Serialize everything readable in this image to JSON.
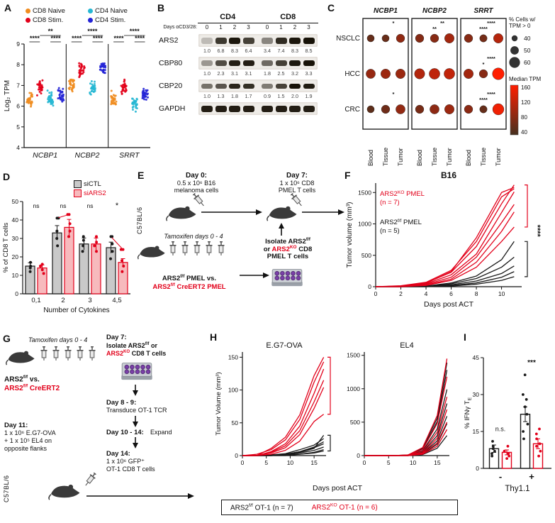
{
  "colors": {
    "red": "#e2001a",
    "black": "#1a1a1a"
  },
  "panels": {
    "A": {
      "label": "A",
      "legend": [
        {
          "label": "CD8 Naive",
          "color": "#f08c1e"
        },
        {
          "label": "CD8 Stim.",
          "color": "#e2001a"
        },
        {
          "label": "CD4 Naive",
          "color": "#25b7d3"
        },
        {
          "label": "CD4 Stim.",
          "color": "#2323d6"
        }
      ],
      "chart_data": {
        "type": "scatter",
        "ylabel": "Log₂ TPM",
        "ylim": [
          4,
          9
        ],
        "yticks": [
          4,
          5,
          6,
          7,
          8,
          9
        ],
        "genes": [
          "NCBP1",
          "NCBP2",
          "SRRT"
        ],
        "conditions": [
          "CD8 Naive",
          "CD8 Stim.",
          "CD4 Naive",
          "CD4 Stim."
        ],
        "group_means": {
          "NCBP1": [
            6.3,
            6.9,
            6.35,
            6.55
          ],
          "NCBP2": [
            7.0,
            7.7,
            6.9,
            7.8
          ],
          "SRRT": [
            6.3,
            6.95,
            6.15,
            6.6
          ]
        },
        "group_sd": 0.3,
        "n_per_group": 30,
        "sig": {
          "NCBP1": {
            "top": "**",
            "left": "****",
            "right": "****"
          },
          "NCBP2": {
            "top": "****",
            "left": "****",
            "right": "****"
          },
          "SRRT": {
            "top": "****",
            "left": "****",
            "right": "****"
          }
        }
      }
    },
    "B": {
      "label": "B",
      "groups": [
        "CD4",
        "CD8"
      ],
      "days_label": "Days αCD3/28:",
      "days": [
        "0",
        "1",
        "2",
        "3",
        "0",
        "1",
        "2",
        "3"
      ],
      "rows": [
        {
          "protein": "ARS2",
          "values": [
            1.0,
            6.8,
            8.3,
            6.4,
            3.4,
            7.4,
            8.3,
            8.5
          ]
        },
        {
          "protein": "CBP80",
          "values": [
            1.0,
            2.3,
            3.1,
            3.1,
            1.8,
            2.5,
            3.2,
            3.3
          ]
        },
        {
          "protein": "CBP20",
          "values": [
            1.0,
            1.3,
            1.8,
            1.7,
            0.9,
            1.5,
            2.0,
            1.9
          ]
        },
        {
          "protein": "GAPDH",
          "values": null
        }
      ]
    },
    "C": {
      "label": "C",
      "genes": [
        "NCBP1",
        "NCBP2",
        "SRRT"
      ],
      "rows": [
        "NSCLC",
        "HCC",
        "CRC"
      ],
      "tissues": [
        "Blood",
        "Tissue",
        "Tumor"
      ],
      "size_legend": {
        "title1": "% Cells w/",
        "title2": "TPM > 0",
        "values": [
          40,
          50,
          60
        ]
      },
      "color_legend": {
        "title": "Median TPM",
        "values": [
          160,
          120,
          80,
          40
        ],
        "max_color": "#ff1e00",
        "min_color": "#46301e"
      },
      "cells": {
        "NSCLC": {
          "NCBP1": [
            [
              45,
              60
            ],
            [
              45,
              62
            ],
            [
              50,
              88
            ]
          ],
          "NCBP2": [
            [
              50,
              80
            ],
            [
              50,
              82
            ],
            [
              55,
              100
            ]
          ],
          "SRRT": [
            [
              50,
              82
            ],
            [
              46,
              70
            ],
            [
              55,
              112
            ]
          ]
        },
        "HCC": {
          "NCBP1": [
            [
              54,
              92
            ],
            [
              55,
              96
            ],
            [
              55,
              95
            ]
          ],
          "NCBP2": [
            [
              58,
              110
            ],
            [
              60,
              118
            ],
            [
              60,
              120
            ]
          ],
          "SRRT": [
            [
              55,
              100
            ],
            [
              50,
              82
            ],
            [
              64,
              160
            ]
          ]
        },
        "CRC": {
          "NCBP1": [
            [
              45,
              55
            ],
            [
              50,
              66
            ],
            [
              54,
              90
            ]
          ],
          "NCBP2": [
            [
              50,
              72
            ],
            [
              54,
              86
            ],
            [
              55,
              96
            ]
          ],
          "SRRT": [
            [
              50,
              85
            ],
            [
              46,
              60
            ],
            [
              62,
              150
            ]
          ]
        }
      },
      "sig": {
        "NSCLC": {
          "NCBP1": [
            "*",
            ""
          ],
          "NCBP2": [
            "**",
            "**"
          ],
          "SRRT": [
            "****",
            "****"
          ]
        },
        "HCC": {
          "NCBP1": [
            "",
            ""
          ],
          "NCBP2": [
            "",
            ""
          ],
          "SRRT": [
            "****",
            "*"
          ]
        },
        "CRC": {
          "NCBP1": [
            "*",
            ""
          ],
          "NCBP2": [
            "",
            ""
          ],
          "SRRT": [
            "****",
            "****"
          ]
        }
      }
    },
    "D": {
      "label": "D",
      "legend": [
        {
          "label": "siCTL",
          "fill": "#c9c9c9",
          "border": "#1a1a1a"
        },
        {
          "label": "siARS2",
          "fill": "#f7babd",
          "border": "#e2001a"
        }
      ],
      "chart_data": {
        "type": "bar",
        "categories": [
          "0,1",
          "2",
          "3",
          "4,5"
        ],
        "series": [
          {
            "name": "siCTL",
            "values": [
              15,
              33,
              27,
              25
            ],
            "dots": [
              [
                12,
                14,
                15,
                17
              ],
              [
                26,
                30,
                34,
                41
              ],
              [
                23,
                26,
                29,
                31
              ],
              [
                19,
                23,
                27,
                31
              ]
            ]
          },
          {
            "name": "siARS2",
            "values": [
              14,
              36,
              27,
              17
            ],
            "dots": [
              [
                11,
                13,
                15,
                16
              ],
              [
                31,
                34,
                38,
                43
              ],
              [
                23,
                26,
                28,
                31
              ],
              [
                12,
                15,
                18,
                24
              ]
            ]
          }
        ],
        "paired_lines": [
          {
            "cat": 1,
            "from": 41,
            "to": 43
          },
          {
            "cat": 3,
            "from": 31,
            "to": 24
          }
        ],
        "sig": [
          "ns",
          "ns",
          "ns",
          "*"
        ],
        "ylabel": "% of CD8 T cells",
        "xlabel": "Number of Cytokines",
        "ylim": [
          0,
          50
        ],
        "yticks": [
          0,
          10,
          20,
          30,
          40,
          50
        ]
      }
    },
    "E": {
      "label": "E",
      "strain": "C57BL/6",
      "day0_title": "Day 0:",
      "day0_line1": "0.5 x 10⁶ B16",
      "day0_line2": "melanoma cells",
      "day7_title": "Day 7:",
      "day7_line1": "1 x 10⁶ CD8",
      "day7_line2": "PMEL T cells",
      "tamoxifen": "Tamoxifen days 0 - 4",
      "isolate_line1": "Isolate ARS2^f/f^",
      "isolate_line2": "or {r}ARS2^KO^{/r} CD8",
      "isolate_line3": "PMEL T cells",
      "vs_line1": "ARS2^f/f^ PMEL vs.",
      "vs_line2": "{r}ARS2^f/f^ CreERT2 PMEL{/r}"
    },
    "F": {
      "label": "F",
      "title": "B16",
      "label_ko": "{r}ARS2^KO^ PMEL{/r}",
      "label_ko_n": "{r}(n = 7){/r}",
      "label_ff": "ARS2^f/f^ PMEL",
      "label_ff_n": "(n = 5)",
      "sig": "****",
      "chart_data": {
        "type": "line",
        "xlabel": "Days post ACT",
        "ylabel": "Tumor volume (mm³)",
        "xlim": [
          0,
          11.6
        ],
        "ylim": [
          0,
          1650
        ],
        "xticks": [
          0,
          2,
          4,
          6,
          8,
          10
        ],
        "yticks": [
          0,
          500,
          1000,
          1500
        ],
        "x": [
          0,
          2,
          4,
          6,
          8,
          10,
          11
        ],
        "red": [
          [
            0,
            10,
            60,
            230,
            640,
            1320,
            1620
          ],
          [
            0,
            5,
            45,
            190,
            520,
            1180,
            1510
          ],
          [
            0,
            15,
            70,
            260,
            720,
            1430,
            1560
          ],
          [
            0,
            5,
            35,
            150,
            470,
            1020,
            1310
          ],
          [
            0,
            0,
            25,
            120,
            390,
            880,
            1190
          ],
          [
            0,
            10,
            55,
            240,
            780,
            1500,
            1580
          ],
          [
            0,
            0,
            20,
            100,
            310,
            720,
            950
          ]
        ],
        "black": [
          [
            0,
            0,
            10,
            60,
            170,
            430,
            720
          ],
          [
            0,
            0,
            5,
            45,
            130,
            310,
            470
          ],
          [
            0,
            0,
            5,
            30,
            90,
            210,
            330
          ],
          [
            0,
            0,
            0,
            20,
            60,
            150,
            240
          ],
          [
            0,
            0,
            0,
            10,
            40,
            100,
            160
          ]
        ]
      }
    },
    "G": {
      "label": "G",
      "tamoxifen": "Tamoxifen days 0 - 4",
      "vs_line1": "ARS2^f/f^ vs.",
      "vs_line2": "{r}ARS2^f/f^ CreERT2{/r}",
      "day7_title": "Day 7:",
      "day7_line1": "Isolate ARS2^f/f^ or",
      "day7_line2": "{r}ARS2^KO^{/r} CD8 T cells",
      "day89_title": "Day 8 - 9:",
      "day89_text": "Transduce OT-1 TCR",
      "day1014_title": "Day 10 - 14:",
      "day1014_text": "Expand",
      "day11_title": "Day 11:",
      "day11_line1": "1 x 10⁶ E.G7-OVA",
      "day11_line2": "+ 1 x 10⁵ EL4 on",
      "day11_line3": "opposite flanks",
      "day14_title": "Day 14:",
      "day14_line1": "1 x 10⁶ GFP⁺",
      "day14_line2": "OT-1 CD8 T cells",
      "strain": "C57BL/6"
    },
    "H": {
      "label": "H",
      "ylabel": "Tumor Volume (mm³)",
      "xlabel": "Days post ACT",
      "sig": "****",
      "legend": [
        {
          "text": "ARS2^f/f^ OT-1 (n = 7)"
        },
        {
          "text": "{r}ARS2^KO^ OT-1 (n = 6){/r}"
        }
      ],
      "chart_data": [
        {
          "type": "line",
          "title": "E.G7-OVA",
          "xlim": [
            0,
            17.5
          ],
          "ylim": [
            0,
            158
          ],
          "xticks": [
            0,
            5,
            10,
            15
          ],
          "yticks": [
            0,
            50,
            100,
            150
          ],
          "x": [
            0,
            3,
            6,
            9,
            12,
            15,
            17
          ],
          "red": [
            [
              0,
              0,
              6,
              18,
              45,
              95,
              132
            ],
            [
              0,
              2,
              9,
              24,
              55,
              112,
              143
            ],
            [
              0,
              0,
              11,
              28,
              62,
              122,
              150
            ],
            [
              0,
              0,
              4,
              12,
              32,
              72,
              104
            ],
            [
              0,
              0,
              5,
              15,
              38,
              82,
              115
            ],
            [
              0,
              0,
              2,
              8,
              22,
              52,
              63
            ]
          ],
          "black": [
            [
              0,
              0,
              0,
              2,
              6,
              12,
              18
            ],
            [
              0,
              0,
              1,
              3,
              9,
              16,
              26
            ],
            [
              0,
              0,
              0,
              1,
              4,
              8,
              13
            ],
            [
              0,
              0,
              0,
              2,
              6,
              13,
              21
            ],
            [
              0,
              0,
              0,
              1,
              2,
              5,
              9
            ],
            [
              0,
              0,
              1,
              2,
              5,
              11,
              31
            ],
            [
              0,
              0,
              0,
              0,
              2,
              4,
              7
            ]
          ]
        },
        {
          "type": "line",
          "title": "EL4",
          "xlim": [
            0,
            17.5
          ],
          "ylim": [
            0,
            1550
          ],
          "xticks": [
            0,
            5,
            10,
            15
          ],
          "yticks": [
            0,
            500,
            1000,
            1500
          ],
          "x": [
            0,
            3,
            6,
            9,
            12,
            15,
            17
          ],
          "red": [
            [
              0,
              0,
              0,
              10,
              120,
              600,
              1450
            ],
            [
              0,
              0,
              0,
              5,
              90,
              480,
              1180
            ],
            [
              0,
              0,
              0,
              5,
              60,
              350,
              880
            ],
            [
              0,
              0,
              0,
              0,
              40,
              260,
              690
            ],
            [
              0,
              0,
              0,
              0,
              30,
              190,
              500
            ],
            [
              0,
              0,
              0,
              0,
              20,
              140,
              390
            ]
          ],
          "black": [
            [
              0,
              0,
              0,
              10,
              110,
              560,
              1390
            ],
            [
              0,
              0,
              0,
              5,
              95,
              510,
              1280
            ],
            [
              0,
              0,
              0,
              5,
              70,
              400,
              990
            ],
            [
              0,
              0,
              0,
              0,
              50,
              300,
              780
            ],
            [
              0,
              0,
              0,
              0,
              35,
              220,
              590
            ],
            [
              0,
              0,
              0,
              0,
              25,
              170,
              480
            ],
            [
              0,
              0,
              0,
              0,
              15,
              110,
              300
            ]
          ]
        }
      ]
    },
    "I": {
      "label": "I",
      "chart_data": {
        "type": "bar",
        "ylabel": "% IFNγ T~E~",
        "xlabel": "Thy1.1",
        "categories": [
          "-",
          "+"
        ],
        "ylim": [
          0,
          45
        ],
        "yticks": [
          0,
          15,
          30,
          45
        ],
        "series": [
          {
            "color": "#1a1a1a",
            "values": [
              8,
              22
            ],
            "err": [
              1.5,
              3
            ],
            "dots": [
              [
                5,
                6,
                7,
                8,
                9,
                11
              ],
              [
                12,
                15,
                18,
                22,
                25,
                28,
                30,
                38
              ]
            ]
          },
          {
            "color": "#e2001a",
            "values": [
              6.5,
              10
            ],
            "err": [
              1,
              2
            ],
            "dots": [
              [
                4,
                5,
                6,
                7,
                9
              ],
              [
                5,
                7,
                9,
                10,
                12,
                14,
                16
              ]
            ]
          }
        ],
        "sig": [
          "n.s.",
          "***"
        ]
      }
    }
  }
}
